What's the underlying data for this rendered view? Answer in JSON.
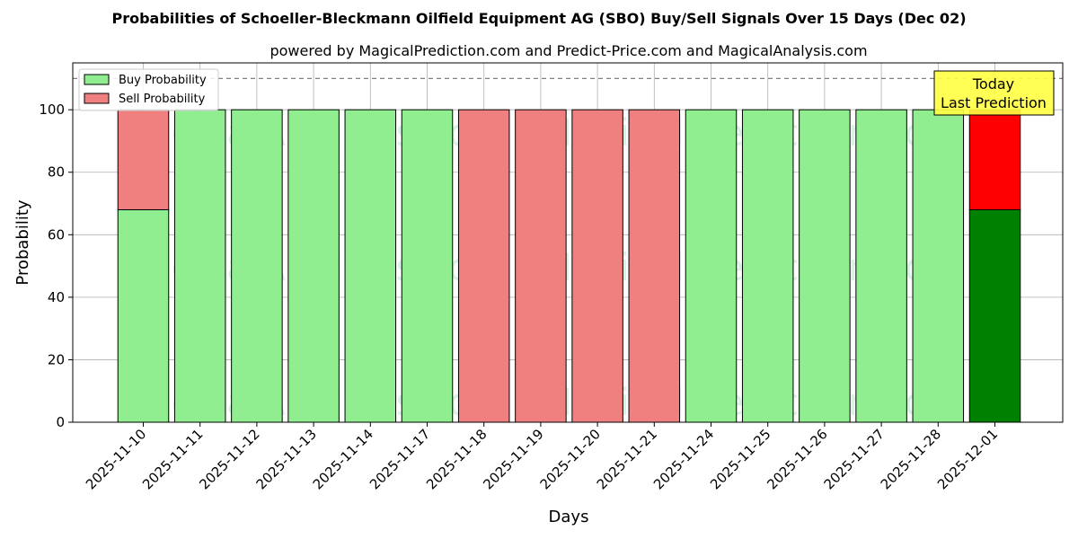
{
  "chart_data": {
    "type": "bar",
    "stacked": true,
    "title": "Probabilities of Schoeller-Bleckmann Oilfield Equipment AG (SBO) Buy/Sell Signals Over 15 Days (Dec 02)",
    "subtitle": "powered by MagicalPrediction.com and Predict-Price.com and MagicalAnalysis.com",
    "xlabel": "Days",
    "ylabel": "Probability",
    "ylim": [
      0,
      115
    ],
    "yticks": [
      0,
      20,
      40,
      60,
      80,
      100
    ],
    "grid": true,
    "legend_position": "top-left",
    "reference_line": 110,
    "categories": [
      "2025-11-10",
      "2025-11-11",
      "2025-11-12",
      "2025-11-13",
      "2025-11-14",
      "2025-11-17",
      "2025-11-18",
      "2025-11-19",
      "2025-11-20",
      "2025-11-21",
      "2025-11-24",
      "2025-11-25",
      "2025-11-26",
      "2025-11-27",
      "2025-11-28",
      "2025-12-01"
    ],
    "series": [
      {
        "name": "Buy Probability",
        "values": [
          68,
          100,
          100,
          100,
          100,
          100,
          0,
          0,
          0,
          0,
          100,
          100,
          100,
          100,
          100,
          68
        ]
      },
      {
        "name": "Sell Probability",
        "values": [
          32,
          0,
          0,
          0,
          0,
          0,
          100,
          100,
          100,
          100,
          0,
          0,
          0,
          0,
          0,
          32
        ]
      }
    ],
    "colors": {
      "buy": "#90ee90",
      "sell": "#f08080",
      "buy_highlight": "#008000",
      "sell_highlight": "#ff0000",
      "annotation_bg": "#ffff44"
    },
    "highlight_index": 15,
    "annotation": {
      "line1": "Today",
      "line2": "Last Prediction"
    },
    "watermarks": [
      "MagicalAnalysis.com",
      "MagicalPrediction.com"
    ]
  }
}
